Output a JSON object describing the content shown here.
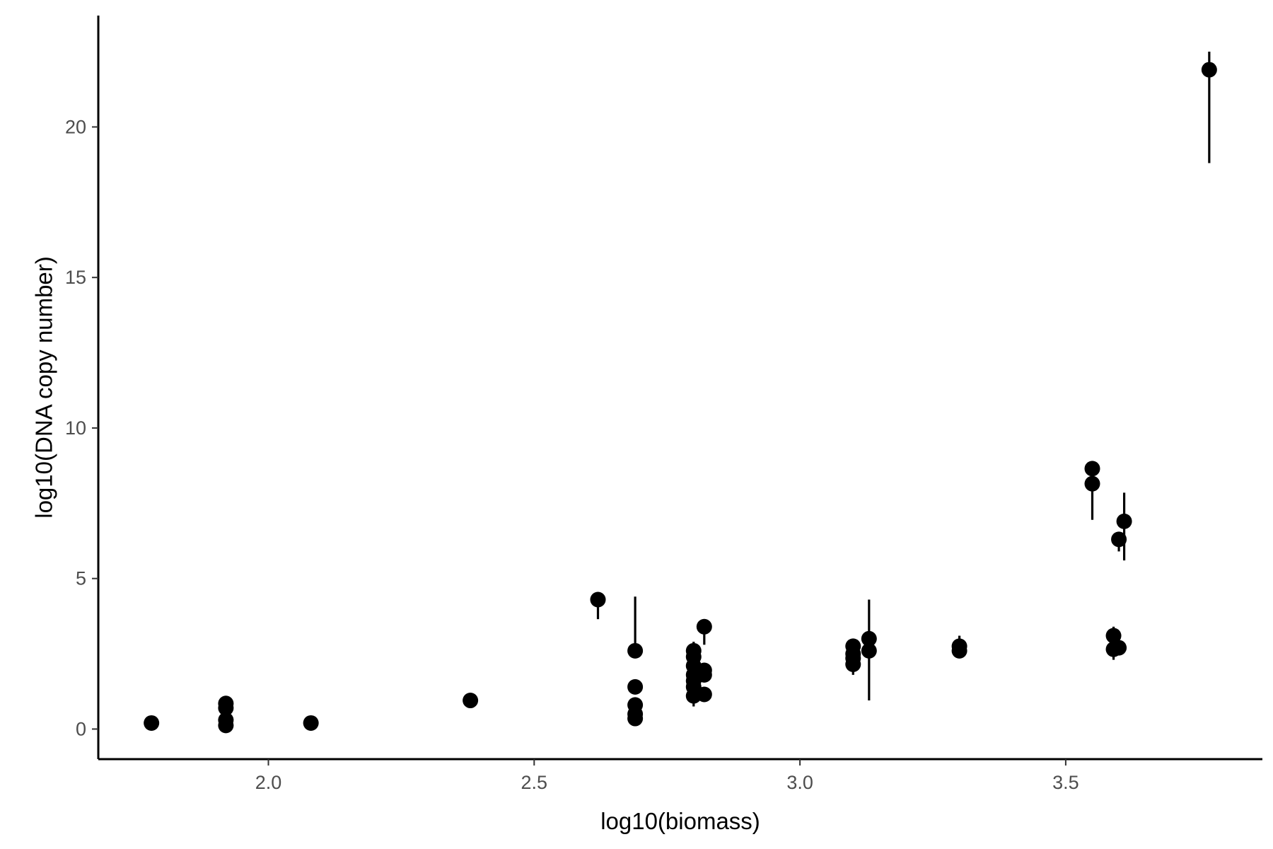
{
  "chart_data": {
    "type": "scatter",
    "title": "",
    "xlabel": "log10(biomass)",
    "ylabel": "log10(DNA copy number)",
    "xlim": [
      1.68,
      3.87
    ],
    "ylim": [
      -1.0,
      23.7
    ],
    "x_ticks": [
      "2.0",
      "2.5",
      "3.0",
      "3.5"
    ],
    "y_ticks": [
      "0",
      "5",
      "10",
      "15",
      "20"
    ],
    "x_tick_values": [
      2.0,
      2.5,
      3.0,
      3.5
    ],
    "y_tick_values": [
      0,
      5,
      10,
      15,
      20
    ],
    "grid": false,
    "legend": "none",
    "marker_color": "#000000",
    "points": [
      {
        "x": 1.78,
        "y": 0.2
      },
      {
        "x": 1.92,
        "y": 0.85
      },
      {
        "x": 1.92,
        "y": 0.7
      },
      {
        "x": 1.92,
        "y": 0.3
      },
      {
        "x": 1.92,
        "y": 0.12
      },
      {
        "x": 2.08,
        "y": 0.2
      },
      {
        "x": 2.38,
        "y": 0.95
      },
      {
        "x": 2.62,
        "y": 4.3,
        "ymin": 3.65,
        "ymax": 4.3
      },
      {
        "x": 2.69,
        "y": 2.6,
        "ymin": 2.6,
        "ymax": 4.4
      },
      {
        "x": 2.69,
        "y": 1.4
      },
      {
        "x": 2.69,
        "y": 0.8
      },
      {
        "x": 2.69,
        "y": 0.5
      },
      {
        "x": 2.69,
        "y": 0.35
      },
      {
        "x": 2.8,
        "y": 2.6,
        "ymin": 2.6,
        "ymax": 2.9
      },
      {
        "x": 2.8,
        "y": 2.4
      },
      {
        "x": 2.8,
        "y": 2.1
      },
      {
        "x": 2.8,
        "y": 1.8
      },
      {
        "x": 2.8,
        "y": 1.6
      },
      {
        "x": 2.8,
        "y": 1.4
      },
      {
        "x": 2.8,
        "y": 1.1,
        "ymin": 0.75,
        "ymax": 1.1
      },
      {
        "x": 2.82,
        "y": 3.4,
        "ymin": 2.8,
        "ymax": 3.4
      },
      {
        "x": 2.82,
        "y": 1.95
      },
      {
        "x": 2.82,
        "y": 1.8
      },
      {
        "x": 2.82,
        "y": 1.15
      },
      {
        "x": 3.1,
        "y": 2.75
      },
      {
        "x": 3.1,
        "y": 2.5
      },
      {
        "x": 3.1,
        "y": 2.35
      },
      {
        "x": 3.1,
        "y": 2.15,
        "ymin": 1.8,
        "ymax": 2.15
      },
      {
        "x": 3.13,
        "y": 3.0,
        "ymin": 3.0,
        "ymax": 4.3
      },
      {
        "x": 3.13,
        "y": 2.6,
        "ymin": 0.95,
        "ymax": 2.6
      },
      {
        "x": 3.3,
        "y": 2.75,
        "ymin": 2.75,
        "ymax": 3.1
      },
      {
        "x": 3.3,
        "y": 2.6
      },
      {
        "x": 3.55,
        "y": 8.65
      },
      {
        "x": 3.55,
        "y": 8.15,
        "ymin": 6.95,
        "ymax": 8.15
      },
      {
        "x": 3.59,
        "y": 3.1,
        "ymin": 3.1,
        "ymax": 3.4
      },
      {
        "x": 3.59,
        "y": 2.65,
        "ymin": 2.3,
        "ymax": 2.65
      },
      {
        "x": 3.6,
        "y": 6.3,
        "ymin": 5.9,
        "ymax": 6.3
      },
      {
        "x": 3.6,
        "y": 2.7
      },
      {
        "x": 3.61,
        "y": 6.9,
        "ymin": 5.6,
        "ymax": 7.85
      },
      {
        "x": 3.77,
        "y": 21.9,
        "ymin": 18.8,
        "ymax": 22.5
      }
    ]
  }
}
